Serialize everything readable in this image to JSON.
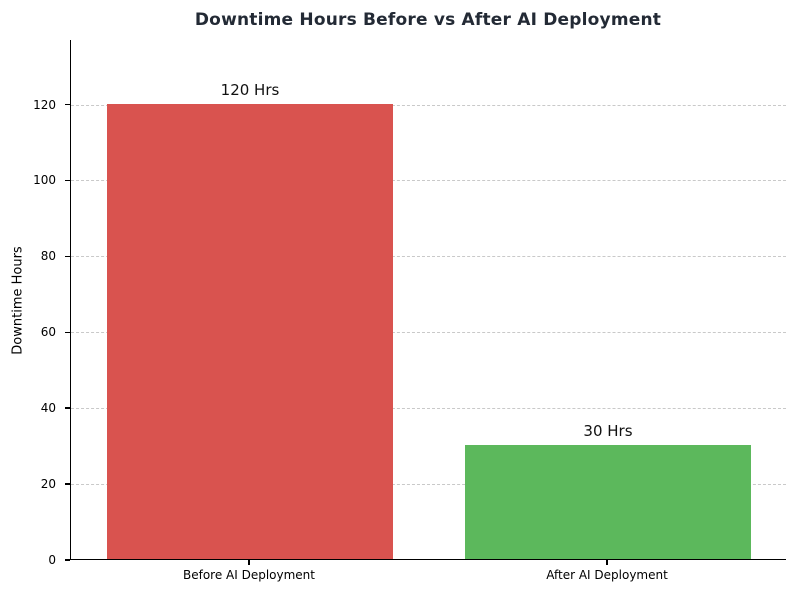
{
  "figure": {
    "background": "#ffffff"
  },
  "chart_data": {
    "type": "bar",
    "title": "Downtime Hours Before vs After AI Deployment",
    "title_color": "#232a35",
    "categories": [
      "Before AI Deployment",
      "After AI Deployment"
    ],
    "values": [
      120,
      30
    ],
    "bar_labels": [
      "120 Hrs",
      "30 Hrs"
    ],
    "bar_colors": [
      "#d9534f",
      "#5cb85c"
    ],
    "xlabel": "",
    "ylabel": "Downtime Hours",
    "yticks": [
      0,
      20,
      40,
      60,
      80,
      100,
      120
    ],
    "ylim": [
      0,
      137
    ],
    "grid": "horizontal-dashed",
    "grid_color": "#c9c9c9",
    "axis_color": "#000000",
    "legend_position": "none"
  }
}
